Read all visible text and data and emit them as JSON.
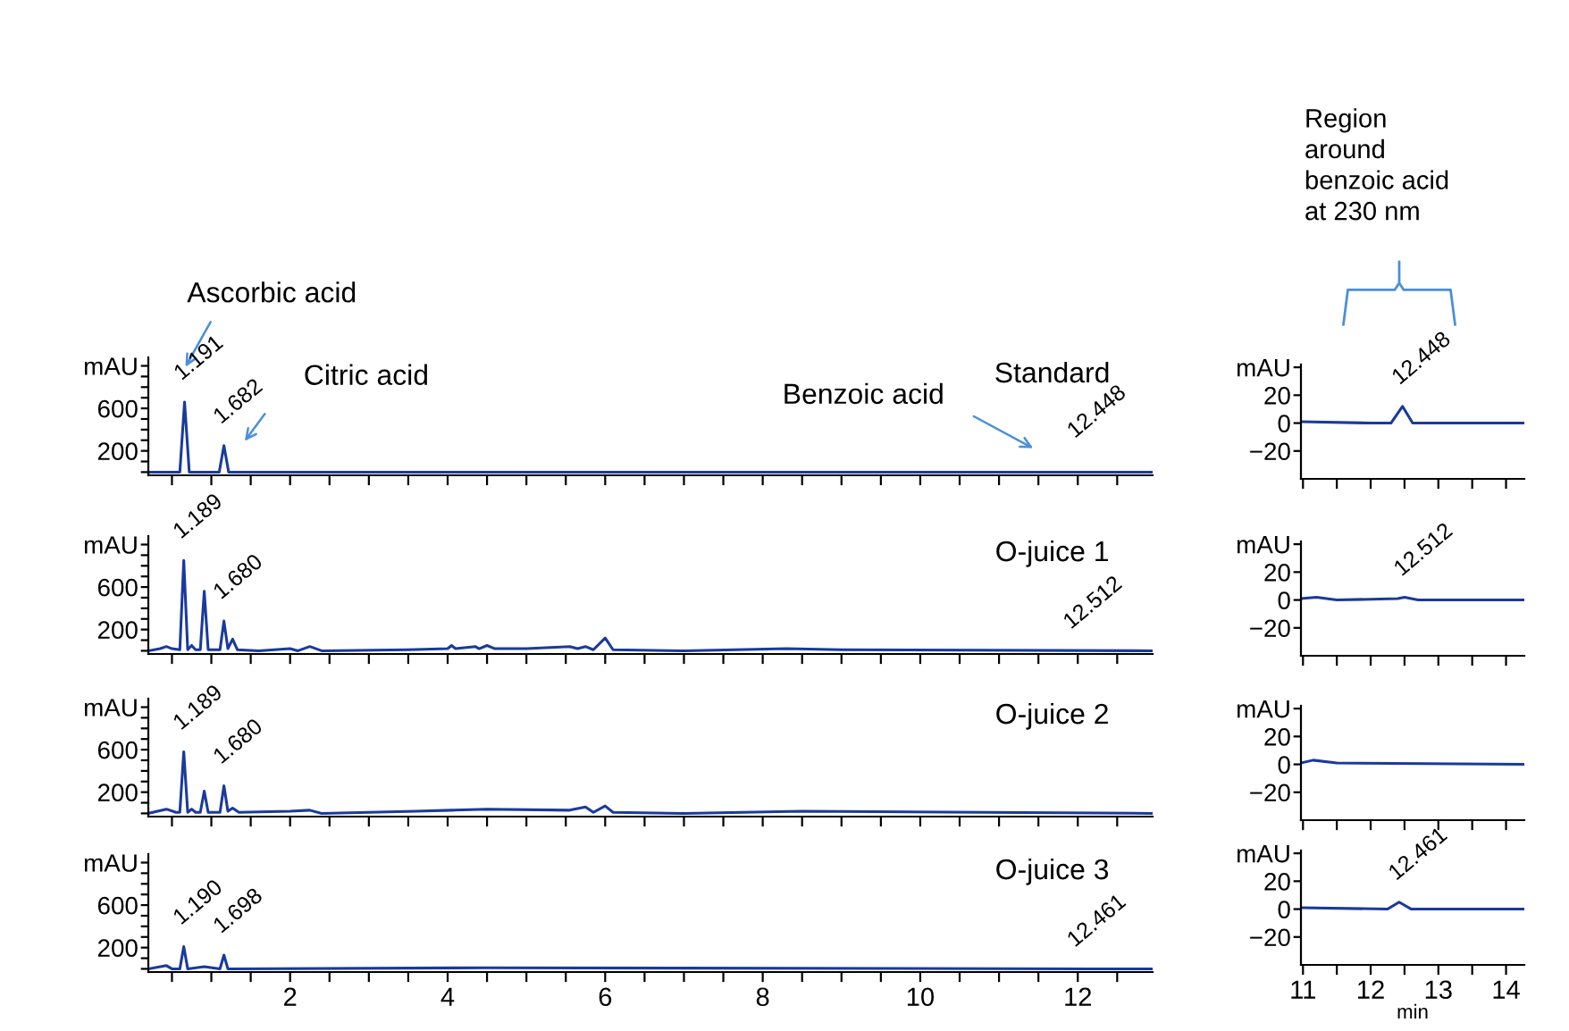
{
  "chart_data": [
    {
      "type": "line",
      "title": "Standard",
      "x": [
        0.2,
        0.6,
        0.66,
        0.72,
        1.1,
        1.16,
        1.22,
        11.9,
        12.2,
        12.5,
        12.95
      ],
      "series": [
        {
          "color": "#1a3a9c",
          "values": [
            0,
            0,
            660,
            0,
            0,
            250,
            0,
            0,
            0,
            0,
            0
          ]
        }
      ],
      "xlim": [
        0.2,
        12.95
      ],
      "ylim": [
        -30,
        1080
      ],
      "xticks": [
        {
          "value": 0.5,
          "label": null
        },
        {
          "value": 1,
          "label": null
        },
        {
          "value": 1.5,
          "label": null
        },
        2,
        {
          "value": 2.5,
          "label": null
        },
        {
          "value": 3,
          "label": null
        },
        {
          "value": 3.5,
          "label": null
        },
        4,
        {
          "value": 4.5,
          "label": null
        },
        {
          "value": 5,
          "label": null
        },
        {
          "value": 5.5,
          "label": null
        },
        6,
        {
          "value": 6.5,
          "label": null
        },
        {
          "value": 7,
          "label": null
        },
        {
          "value": 7.5,
          "label": null
        },
        8,
        {
          "value": 8.5,
          "label": null
        },
        {
          "value": 9,
          "label": null
        },
        {
          "value": 9.5,
          "label": null
        },
        10,
        {
          "value": 10.5,
          "label": null
        },
        {
          "value": 11,
          "label": null
        },
        {
          "value": 11.5,
          "label": null
        },
        12,
        {
          "value": 12.5,
          "label": null
        }
      ],
      "yticks": [
        {
          "value": 0,
          "label": null
        },
        {
          "value": 100,
          "label": null
        },
        200,
        {
          "value": 300,
          "label": null
        },
        {
          "value": 400,
          "label": null
        },
        {
          "value": 500,
          "label": null
        },
        600,
        {
          "value": 700,
          "label": null
        },
        {
          "value": 800,
          "label": null
        },
        {
          "value": 900,
          "label": null
        },
        {
          "value": 1000,
          "label": "mAU"
        }
      ],
      "tick_labels": "y",
      "annotations": [
        "Ascorbic acid",
        {
          "text": "1.191",
          "x": 0.66,
          "y": 660
        },
        "Citric acid",
        {
          "text": "1.682",
          "x": 1.16,
          "y": 250
        },
        "Benzoic acid",
        {
          "text": "12.448",
          "x": 12.0,
          "y": 0
        }
      ]
    },
    {
      "type": "line",
      "x": [
        10.97,
        12.0,
        12.3,
        12.47,
        12.62,
        14.27
      ],
      "series": [
        {
          "color": "#1a3a9c",
          "values": [
            1,
            0,
            0,
            12,
            0,
            0
          ]
        }
      ],
      "xlim": [
        10.97,
        14.27
      ],
      "ylim": [
        -40,
        42
      ],
      "xticks": [
        11,
        {
          "value": 11.5,
          "label": null
        },
        12,
        {
          "value": 12.5,
          "label": null
        },
        13,
        {
          "value": 13.5,
          "label": null
        },
        14
      ],
      "yticks": [
        {
          "value": -20,
          "label": "−20"
        },
        0,
        20,
        {
          "value": 40,
          "label": "mAU"
        }
      ],
      "tick_labels": "y",
      "annotations": [
        "Region\naround\nbenzoic acid\nat 230 nm",
        {
          "text": "12.448",
          "x": 12.47,
          "y": 12
        }
      ]
    },
    {
      "type": "line",
      "title": "O-juice 1",
      "x": [
        0.2,
        0.35,
        0.43,
        0.5,
        0.6,
        0.65,
        0.7,
        0.75,
        0.8,
        0.86,
        0.91,
        0.96,
        1.11,
        1.16,
        1.21,
        1.27,
        1.33,
        1.6,
        2.0,
        2.1,
        2.25,
        2.4,
        3.5,
        4.0,
        4.05,
        4.1,
        4.35,
        4.4,
        4.5,
        4.6,
        5.0,
        5.55,
        5.65,
        5.75,
        5.85,
        6.0,
        6.1,
        7.0,
        8.3,
        9.0,
        12.95
      ],
      "series": [
        {
          "color": "#1a3a9c",
          "values": [
            0,
            20,
            40,
            20,
            10,
            850,
            10,
            50,
            10,
            10,
            560,
            10,
            10,
            280,
            20,
            110,
            10,
            0,
            20,
            0,
            40,
            0,
            10,
            20,
            50,
            20,
            40,
            20,
            50,
            20,
            20,
            40,
            20,
            40,
            10,
            120,
            10,
            0,
            20,
            10,
            0
          ]
        }
      ],
      "xlim": [
        0.2,
        12.95
      ],
      "ylim": [
        -30,
        1080
      ],
      "xticks": [
        {
          "value": 0.5,
          "label": null
        },
        {
          "value": 1,
          "label": null
        },
        {
          "value": 1.5,
          "label": null
        },
        2,
        {
          "value": 2.5,
          "label": null
        },
        {
          "value": 3,
          "label": null
        },
        {
          "value": 3.5,
          "label": null
        },
        4,
        {
          "value": 4.5,
          "label": null
        },
        {
          "value": 5,
          "label": null
        },
        {
          "value": 5.5,
          "label": null
        },
        6,
        {
          "value": 6.5,
          "label": null
        },
        {
          "value": 7,
          "label": null
        },
        {
          "value": 7.5,
          "label": null
        },
        8,
        {
          "value": 8.5,
          "label": null
        },
        {
          "value": 9,
          "label": null
        },
        {
          "value": 9.5,
          "label": null
        },
        10,
        {
          "value": 10.5,
          "label": null
        },
        {
          "value": 11,
          "label": null
        },
        {
          "value": 11.5,
          "label": null
        },
        12,
        {
          "value": 12.5,
          "label": null
        }
      ],
      "yticks": [
        {
          "value": 0,
          "label": null
        },
        {
          "value": 100,
          "label": null
        },
        200,
        {
          "value": 300,
          "label": null
        },
        {
          "value": 400,
          "label": null
        },
        {
          "value": 500,
          "label": null
        },
        600,
        {
          "value": 700,
          "label": null
        },
        {
          "value": 800,
          "label": null
        },
        {
          "value": 900,
          "label": null
        },
        {
          "value": 1000,
          "label": "mAU"
        }
      ],
      "tick_labels": "y",
      "annotations": [
        {
          "text": "1.189",
          "x": 0.65,
          "y": 850
        },
        {
          "text": "1.680",
          "x": 1.16,
          "y": 280
        },
        {
          "text": "12.512",
          "x": 11.95,
          "y": 0
        }
      ]
    },
    {
      "type": "line",
      "x": [
        10.97,
        11.2,
        11.5,
        12.4,
        12.5,
        12.7,
        14.27
      ],
      "series": [
        {
          "color": "#1a3a9c",
          "values": [
            1,
            2,
            0,
            1,
            2,
            0,
            0
          ]
        }
      ],
      "xlim": [
        10.97,
        14.27
      ],
      "ylim": [
        -40,
        42
      ],
      "xticks": [
        11,
        {
          "value": 11.5,
          "label": null
        },
        12,
        {
          "value": 12.5,
          "label": null
        },
        13,
        {
          "value": 13.5,
          "label": null
        },
        14
      ],
      "yticks": [
        {
          "value": -20,
          "label": "−20"
        },
        0,
        20,
        {
          "value": 40,
          "label": "mAU"
        }
      ],
      "tick_labels": "y",
      "annotations": [
        {
          "text": "12.512",
          "x": 12.5,
          "y": 1.5
        }
      ]
    },
    {
      "type": "line",
      "title": "O-juice 2",
      "x": [
        0.2,
        0.43,
        0.55,
        0.6,
        0.65,
        0.7,
        0.75,
        0.8,
        0.86,
        0.91,
        0.96,
        1.11,
        1.16,
        1.21,
        1.27,
        1.35,
        2.0,
        2.25,
        2.4,
        3.6,
        4.05,
        4.5,
        5.55,
        5.75,
        5.85,
        6.0,
        6.1,
        7.0,
        8.5,
        12.95
      ],
      "series": [
        {
          "color": "#1a3a9c",
          "values": [
            0,
            40,
            10,
            10,
            580,
            10,
            40,
            10,
            10,
            210,
            10,
            10,
            260,
            20,
            50,
            10,
            20,
            30,
            0,
            20,
            30,
            40,
            30,
            60,
            10,
            70,
            10,
            0,
            20,
            0
          ]
        }
      ],
      "xlim": [
        0.2,
        12.95
      ],
      "ylim": [
        -30,
        1080
      ],
      "xticks": [
        {
          "value": 0.5,
          "label": null
        },
        {
          "value": 1,
          "label": null
        },
        {
          "value": 1.5,
          "label": null
        },
        2,
        {
          "value": 2.5,
          "label": null
        },
        {
          "value": 3,
          "label": null
        },
        {
          "value": 3.5,
          "label": null
        },
        4,
        {
          "value": 4.5,
          "label": null
        },
        {
          "value": 5,
          "label": null
        },
        {
          "value": 5.5,
          "label": null
        },
        6,
        {
          "value": 6.5,
          "label": null
        },
        {
          "value": 7,
          "label": null
        },
        {
          "value": 7.5,
          "label": null
        },
        8,
        {
          "value": 8.5,
          "label": null
        },
        {
          "value": 9,
          "label": null
        },
        {
          "value": 9.5,
          "label": null
        },
        10,
        {
          "value": 10.5,
          "label": null
        },
        {
          "value": 11,
          "label": null
        },
        {
          "value": 11.5,
          "label": null
        },
        12,
        {
          "value": 12.5,
          "label": null
        }
      ],
      "yticks": [
        {
          "value": 0,
          "label": null
        },
        {
          "value": 100,
          "label": null
        },
        200,
        {
          "value": 300,
          "label": null
        },
        {
          "value": 400,
          "label": null
        },
        {
          "value": 500,
          "label": null
        },
        600,
        {
          "value": 700,
          "label": null
        },
        {
          "value": 800,
          "label": null
        },
        {
          "value": 900,
          "label": null
        },
        {
          "value": 1000,
          "label": "mAU"
        }
      ],
      "tick_labels": "y",
      "annotations": [
        {
          "text": "1.189",
          "x": 0.65,
          "y": 580
        },
        {
          "text": "1.680",
          "x": 1.16,
          "y": 260
        }
      ]
    },
    {
      "type": "line",
      "x": [
        10.97,
        11.15,
        11.5,
        14.27
      ],
      "series": [
        {
          "color": "#1a3a9c",
          "values": [
            1,
            3,
            1,
            0
          ]
        }
      ],
      "xlim": [
        10.97,
        14.27
      ],
      "ylim": [
        -40,
        42
      ],
      "xticks": [
        11,
        {
          "value": 11.5,
          "label": null
        },
        12,
        {
          "value": 12.5,
          "label": null
        },
        13,
        {
          "value": 13.5,
          "label": null
        },
        14
      ],
      "yticks": [
        {
          "value": -20,
          "label": "−20"
        },
        0,
        20,
        {
          "value": 40,
          "label": "mAU"
        }
      ],
      "tick_labels": "y"
    },
    {
      "type": "line",
      "title": "O-juice 3",
      "x": [
        0.2,
        0.43,
        0.5,
        0.6,
        0.65,
        0.7,
        0.91,
        1.11,
        1.16,
        1.21,
        4.5,
        12.2,
        12.95
      ],
      "series": [
        {
          "color": "#1a3a9c",
          "values": [
            0,
            30,
            0,
            0,
            210,
            0,
            20,
            0,
            130,
            0,
            10,
            0,
            0
          ]
        }
      ],
      "xlim": [
        0.2,
        12.95
      ],
      "ylim": [
        -30,
        1080
      ],
      "xticks": [
        {
          "value": 0.5,
          "label": null
        },
        {
          "value": 1,
          "label": null
        },
        {
          "value": 1.5,
          "label": null
        },
        2,
        {
          "value": 2.5,
          "label": null
        },
        {
          "value": 3,
          "label": null
        },
        {
          "value": 3.5,
          "label": null
        },
        4,
        {
          "value": 4.5,
          "label": null
        },
        {
          "value": 5,
          "label": null
        },
        {
          "value": 5.5,
          "label": null
        },
        6,
        {
          "value": 6.5,
          "label": null
        },
        {
          "value": 7,
          "label": null
        },
        {
          "value": 7.5,
          "label": null
        },
        8,
        {
          "value": 8.5,
          "label": null
        },
        {
          "value": 9,
          "label": null
        },
        {
          "value": 9.5,
          "label": null
        },
        10,
        {
          "value": 10.5,
          "label": null
        },
        {
          "value": 11,
          "label": null
        },
        {
          "value": 11.5,
          "label": null
        },
        12,
        {
          "value": 12.5,
          "label": null
        }
      ],
      "yticks": [
        {
          "value": 0,
          "label": null
        },
        {
          "value": 100,
          "label": null
        },
        200,
        {
          "value": 300,
          "label": null
        },
        {
          "value": 400,
          "label": null
        },
        {
          "value": 500,
          "label": null
        },
        600,
        {
          "value": 700,
          "label": null
        },
        {
          "value": 800,
          "label": null
        },
        {
          "value": 900,
          "label": null
        },
        {
          "value": 1000,
          "label": "mAU"
        }
      ],
      "annotations": [
        {
          "text": "1.190",
          "x": 0.65,
          "y": 210
        },
        {
          "text": "1.698",
          "x": 1.16,
          "y": 130
        },
        {
          "text": "12.461",
          "x": 12.0,
          "y": 0
        }
      ]
    },
    {
      "type": "line",
      "xlabel": "min",
      "x": [
        10.97,
        12.25,
        12.42,
        12.6,
        14.27
      ],
      "series": [
        {
          "color": "#1a3a9c",
          "values": [
            1,
            0,
            5,
            0,
            0
          ]
        }
      ],
      "xlim": [
        10.97,
        14.27
      ],
      "ylim": [
        -40,
        42
      ],
      "xticks": [
        11,
        {
          "value": 11.5,
          "label": null
        },
        12,
        {
          "value": 12.5,
          "label": null
        },
        13,
        {
          "value": 13.5,
          "label": null
        },
        14
      ],
      "yticks": [
        {
          "value": -20,
          "label": "−20"
        },
        0,
        20,
        {
          "value": 40,
          "label": "mAU"
        }
      ],
      "annotations": [
        {
          "text": "12.461",
          "x": 12.42,
          "y": 5
        }
      ]
    }
  ]
}
